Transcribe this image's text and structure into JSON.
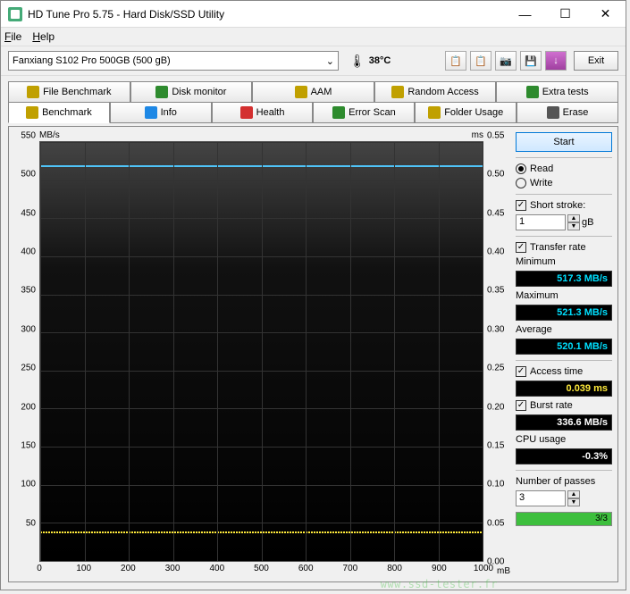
{
  "window": {
    "title": "HD Tune Pro 5.75 - Hard Disk/SSD Utility"
  },
  "menu": {
    "file": "File",
    "help": "Help"
  },
  "toolbar": {
    "drive": "Fanxiang S102 Pro 500GB (500 gB)",
    "temp": "38°C",
    "exit_label": "Exit"
  },
  "tabs_upper": [
    {
      "label": "File Benchmark",
      "icon": "file-bench-icon",
      "color": "#c0a000"
    },
    {
      "label": "Disk monitor",
      "icon": "monitor-icon",
      "color": "#2e8b2e"
    },
    {
      "label": "AAM",
      "icon": "aam-icon",
      "color": "#c0a000"
    },
    {
      "label": "Random Access",
      "icon": "random-icon",
      "color": "#c0a000"
    },
    {
      "label": "Extra tests",
      "icon": "extra-icon",
      "color": "#2e8b2e"
    }
  ],
  "tabs_lower": [
    {
      "label": "Benchmark",
      "icon": "bench-icon",
      "color": "#c0a000",
      "selected": true
    },
    {
      "label": "Info",
      "icon": "info-icon",
      "color": "#1e88e5"
    },
    {
      "label": "Health",
      "icon": "health-icon",
      "color": "#d32f2f"
    },
    {
      "label": "Error Scan",
      "icon": "scan-icon",
      "color": "#2e8b2e"
    },
    {
      "label": "Folder Usage",
      "icon": "folder-icon",
      "color": "#c0a000"
    },
    {
      "label": "Erase",
      "icon": "erase-icon",
      "color": "#555"
    }
  ],
  "chart": {
    "y_left_label": "MB/s",
    "y_right_label": "ms",
    "x_right_label": "mB",
    "y_left": {
      "min": 0,
      "max": 550,
      "step": 50,
      "ticks": [
        0,
        50,
        100,
        150,
        200,
        250,
        300,
        350,
        400,
        450,
        500,
        550
      ]
    },
    "y_right": {
      "min": 0,
      "max": 0.55,
      "step": 0.05,
      "ticks": [
        "0.00",
        "0.05",
        "0.10",
        "0.15",
        "0.20",
        "0.25",
        "0.30",
        "0.35",
        "0.40",
        "0.45",
        "0.50",
        "0.55"
      ]
    },
    "x": {
      "min": 0,
      "max": 1000,
      "step": 100,
      "ticks": [
        0,
        100,
        200,
        300,
        400,
        500,
        600,
        700,
        800,
        900,
        1000
      ]
    },
    "transfer_line_value": 520,
    "transfer_line_color": "#4fc3f7",
    "access_line_value": 0.039,
    "access_line_color": "#ffeb3b",
    "background": "linear-gradient(#444,#000)",
    "grid_color": "#333"
  },
  "controls": {
    "start_label": "Start",
    "read_label": "Read",
    "write_label": "Write",
    "read_selected": true,
    "short_stroke_label": "Short stroke:",
    "short_stroke_checked": true,
    "short_stroke_val": "1",
    "short_stroke_unit": "gB",
    "transfer_rate_label": "Transfer rate",
    "transfer_rate_checked": true,
    "min_label": "Minimum",
    "min_val": "517.3 MB/s",
    "max_label": "Maximum",
    "max_val": "521.3 MB/s",
    "avg_label": "Average",
    "avg_val": "520.1 MB/s",
    "access_label": "Access time",
    "access_checked": true,
    "access_val": "0.039 ms",
    "burst_label": "Burst rate",
    "burst_checked": true,
    "burst_val": "336.6 MB/s",
    "cpu_label": "CPU usage",
    "cpu_val": "-0.3%",
    "passes_label": "Number of passes",
    "passes_val": "3",
    "passes_progress_text": "3/3",
    "passes_progress_pct": 100
  },
  "watermark": "www.ssd-tester.fr"
}
